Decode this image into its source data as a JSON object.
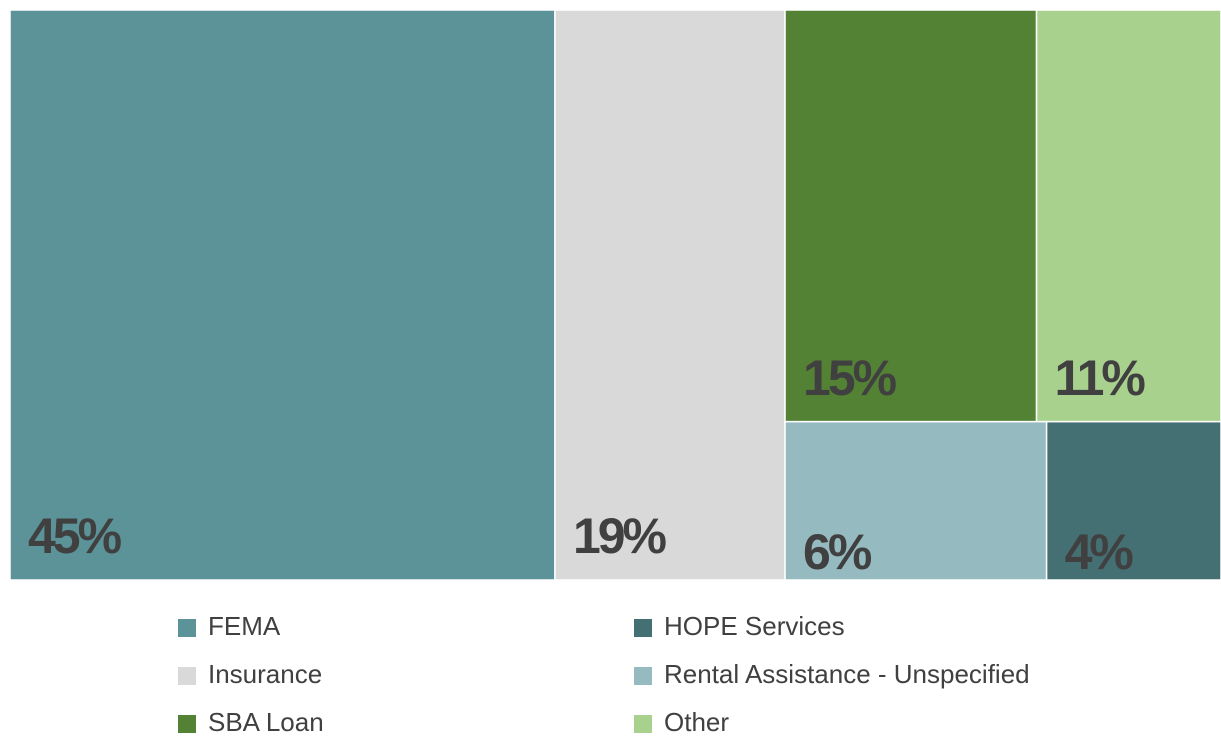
{
  "chart_data": {
    "type": "treemap",
    "series": [
      {
        "name": "FEMA",
        "color": "#5b9398",
        "values": [
          45
        ],
        "value_labels": [
          "45%"
        ]
      },
      {
        "name": "Insurance",
        "color": "#d9d9d9",
        "values": [
          19
        ],
        "value_labels": [
          "19%"
        ]
      },
      {
        "name": "SBA Loan",
        "color": "#548235",
        "values": [
          15
        ],
        "value_labels": [
          "15%"
        ]
      },
      {
        "name": "Other",
        "color": "#a9d18e",
        "values": [
          11
        ],
        "value_labels": [
          "11%"
        ]
      },
      {
        "name": "Rental Assistance - Unspecified",
        "color": "#95babf",
        "values": [
          6
        ],
        "value_labels": [
          "6%"
        ]
      },
      {
        "name": "HOPE Services",
        "color": "#446f73",
        "values": [
          4
        ],
        "value_labels": [
          "4%"
        ]
      }
    ]
  }
}
